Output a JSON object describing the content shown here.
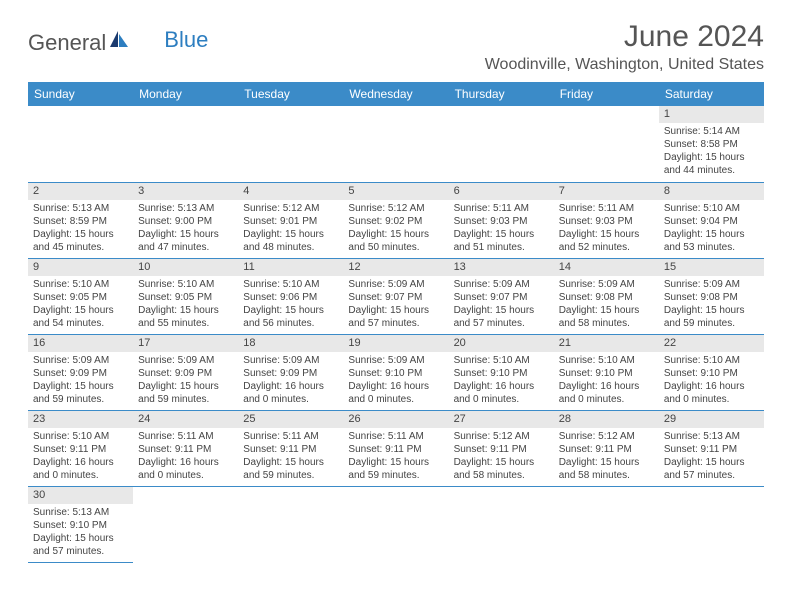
{
  "logo": {
    "part1": "General",
    "part2": "Blue"
  },
  "title": "June 2024",
  "location": "Woodinville, Washington, United States",
  "day_headers": [
    "Sunday",
    "Monday",
    "Tuesday",
    "Wednesday",
    "Thursday",
    "Friday",
    "Saturday"
  ],
  "colors": {
    "header_bg": "#3b8bc8",
    "header_text": "#ffffff",
    "daynum_bg": "#e8e8e8",
    "border": "#3b8bc8",
    "logo_gray": "#555555",
    "logo_blue": "#2d7ec0"
  },
  "weeks": [
    [
      null,
      null,
      null,
      null,
      null,
      null,
      {
        "n": "1",
        "sr": "Sunrise: 5:14 AM",
        "ss": "Sunset: 8:58 PM",
        "dl": "Daylight: 15 hours and 44 minutes."
      }
    ],
    [
      {
        "n": "2",
        "sr": "Sunrise: 5:13 AM",
        "ss": "Sunset: 8:59 PM",
        "dl": "Daylight: 15 hours and 45 minutes."
      },
      {
        "n": "3",
        "sr": "Sunrise: 5:13 AM",
        "ss": "Sunset: 9:00 PM",
        "dl": "Daylight: 15 hours and 47 minutes."
      },
      {
        "n": "4",
        "sr": "Sunrise: 5:12 AM",
        "ss": "Sunset: 9:01 PM",
        "dl": "Daylight: 15 hours and 48 minutes."
      },
      {
        "n": "5",
        "sr": "Sunrise: 5:12 AM",
        "ss": "Sunset: 9:02 PM",
        "dl": "Daylight: 15 hours and 50 minutes."
      },
      {
        "n": "6",
        "sr": "Sunrise: 5:11 AM",
        "ss": "Sunset: 9:03 PM",
        "dl": "Daylight: 15 hours and 51 minutes."
      },
      {
        "n": "7",
        "sr": "Sunrise: 5:11 AM",
        "ss": "Sunset: 9:03 PM",
        "dl": "Daylight: 15 hours and 52 minutes."
      },
      {
        "n": "8",
        "sr": "Sunrise: 5:10 AM",
        "ss": "Sunset: 9:04 PM",
        "dl": "Daylight: 15 hours and 53 minutes."
      }
    ],
    [
      {
        "n": "9",
        "sr": "Sunrise: 5:10 AM",
        "ss": "Sunset: 9:05 PM",
        "dl": "Daylight: 15 hours and 54 minutes."
      },
      {
        "n": "10",
        "sr": "Sunrise: 5:10 AM",
        "ss": "Sunset: 9:05 PM",
        "dl": "Daylight: 15 hours and 55 minutes."
      },
      {
        "n": "11",
        "sr": "Sunrise: 5:10 AM",
        "ss": "Sunset: 9:06 PM",
        "dl": "Daylight: 15 hours and 56 minutes."
      },
      {
        "n": "12",
        "sr": "Sunrise: 5:09 AM",
        "ss": "Sunset: 9:07 PM",
        "dl": "Daylight: 15 hours and 57 minutes."
      },
      {
        "n": "13",
        "sr": "Sunrise: 5:09 AM",
        "ss": "Sunset: 9:07 PM",
        "dl": "Daylight: 15 hours and 57 minutes."
      },
      {
        "n": "14",
        "sr": "Sunrise: 5:09 AM",
        "ss": "Sunset: 9:08 PM",
        "dl": "Daylight: 15 hours and 58 minutes."
      },
      {
        "n": "15",
        "sr": "Sunrise: 5:09 AM",
        "ss": "Sunset: 9:08 PM",
        "dl": "Daylight: 15 hours and 59 minutes."
      }
    ],
    [
      {
        "n": "16",
        "sr": "Sunrise: 5:09 AM",
        "ss": "Sunset: 9:09 PM",
        "dl": "Daylight: 15 hours and 59 minutes."
      },
      {
        "n": "17",
        "sr": "Sunrise: 5:09 AM",
        "ss": "Sunset: 9:09 PM",
        "dl": "Daylight: 15 hours and 59 minutes."
      },
      {
        "n": "18",
        "sr": "Sunrise: 5:09 AM",
        "ss": "Sunset: 9:09 PM",
        "dl": "Daylight: 16 hours and 0 minutes."
      },
      {
        "n": "19",
        "sr": "Sunrise: 5:09 AM",
        "ss": "Sunset: 9:10 PM",
        "dl": "Daylight: 16 hours and 0 minutes."
      },
      {
        "n": "20",
        "sr": "Sunrise: 5:10 AM",
        "ss": "Sunset: 9:10 PM",
        "dl": "Daylight: 16 hours and 0 minutes."
      },
      {
        "n": "21",
        "sr": "Sunrise: 5:10 AM",
        "ss": "Sunset: 9:10 PM",
        "dl": "Daylight: 16 hours and 0 minutes."
      },
      {
        "n": "22",
        "sr": "Sunrise: 5:10 AM",
        "ss": "Sunset: 9:10 PM",
        "dl": "Daylight: 16 hours and 0 minutes."
      }
    ],
    [
      {
        "n": "23",
        "sr": "Sunrise: 5:10 AM",
        "ss": "Sunset: 9:11 PM",
        "dl": "Daylight: 16 hours and 0 minutes."
      },
      {
        "n": "24",
        "sr": "Sunrise: 5:11 AM",
        "ss": "Sunset: 9:11 PM",
        "dl": "Daylight: 16 hours and 0 minutes."
      },
      {
        "n": "25",
        "sr": "Sunrise: 5:11 AM",
        "ss": "Sunset: 9:11 PM",
        "dl": "Daylight: 15 hours and 59 minutes."
      },
      {
        "n": "26",
        "sr": "Sunrise: 5:11 AM",
        "ss": "Sunset: 9:11 PM",
        "dl": "Daylight: 15 hours and 59 minutes."
      },
      {
        "n": "27",
        "sr": "Sunrise: 5:12 AM",
        "ss": "Sunset: 9:11 PM",
        "dl": "Daylight: 15 hours and 58 minutes."
      },
      {
        "n": "28",
        "sr": "Sunrise: 5:12 AM",
        "ss": "Sunset: 9:11 PM",
        "dl": "Daylight: 15 hours and 58 minutes."
      },
      {
        "n": "29",
        "sr": "Sunrise: 5:13 AM",
        "ss": "Sunset: 9:11 PM",
        "dl": "Daylight: 15 hours and 57 minutes."
      }
    ],
    [
      {
        "n": "30",
        "sr": "Sunrise: 5:13 AM",
        "ss": "Sunset: 9:10 PM",
        "dl": "Daylight: 15 hours and 57 minutes."
      },
      null,
      null,
      null,
      null,
      null,
      null
    ]
  ]
}
